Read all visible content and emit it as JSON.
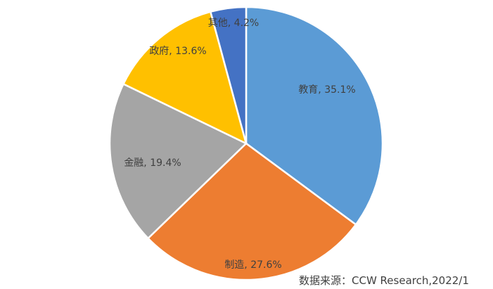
{
  "chart_data": {
    "type": "pie",
    "start_angle": "top, clockwise",
    "slices": [
      {
        "label": "教育",
        "value": 35.1,
        "text": "教育, 35.1%",
        "color": "#5B9BD5"
      },
      {
        "label": "制造",
        "value": 27.6,
        "text": "制造, 27.6%",
        "color": "#ED7D31"
      },
      {
        "label": "金融",
        "value": 19.4,
        "text": "金融, 19.4%",
        "color": "#A5A5A5"
      },
      {
        "label": "政府",
        "value": 13.6,
        "text": "政府, 13.6%",
        "color": "#FFC000"
      },
      {
        "label": "其他",
        "value": 4.2,
        "text": "其他, 4.2%",
        "color": "#4472C4"
      }
    ],
    "legend": "none"
  },
  "source": "数据来源：CCW Research,2022/1"
}
